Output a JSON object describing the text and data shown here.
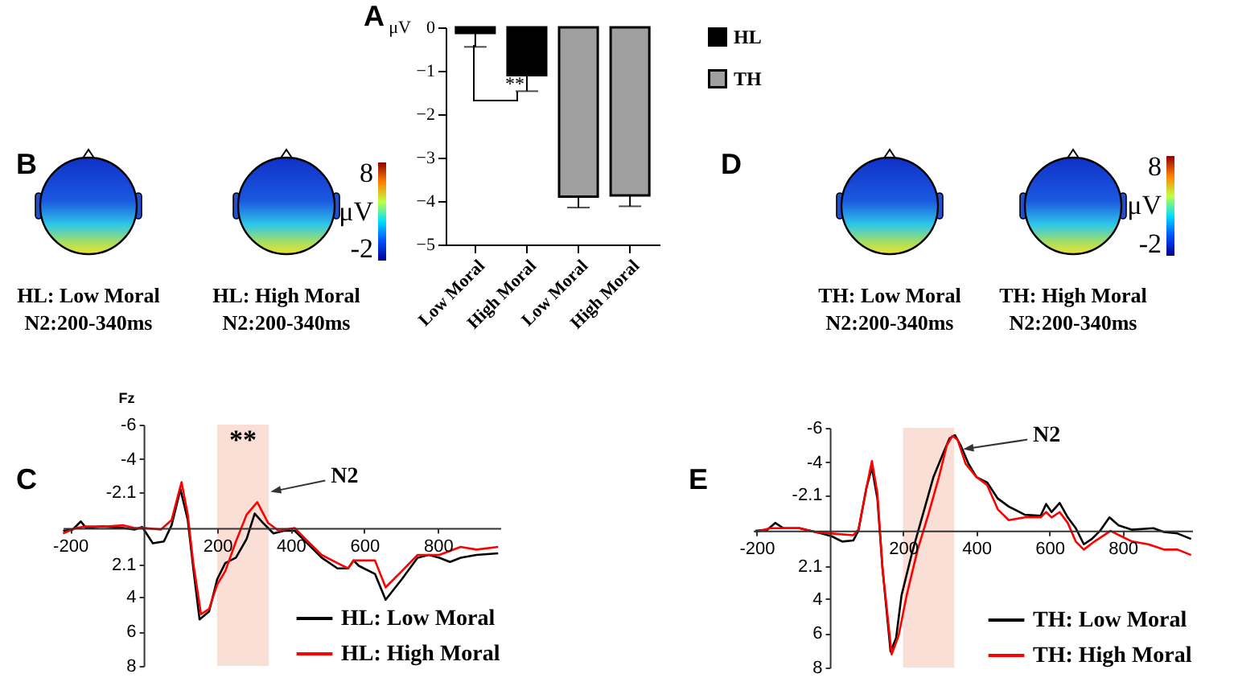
{
  "chart_data": [
    {
      "type": "bar",
      "title": "A",
      "ylabel": "μV",
      "categories": [
        "Low Moral",
        "High Moral",
        "Low Moral",
        "High Moral"
      ],
      "ylim": [
        -5,
        0
      ],
      "yticks": [
        0,
        -1,
        -2,
        -3,
        -4,
        -5
      ],
      "legend": "top right",
      "annotations": [
        "**"
      ],
      "series": [
        {
          "name": "HL",
          "color": "#000000",
          "values": [
            -0.13,
            -1.1,
            null,
            null
          ],
          "errors": [
            [
              -0.45,
              -0.13
            ],
            [
              -1.47,
              -1.1
            ],
            null,
            null
          ]
        },
        {
          "name": "TH",
          "color": "#a0a0a0",
          "values": [
            null,
            null,
            -3.9,
            -3.87
          ],
          "errors": [
            null,
            null,
            [
              -4.15,
              -3.9
            ],
            [
              -4.12,
              -3.87
            ]
          ]
        }
      ]
    },
    {
      "type": "other",
      "title": "B",
      "annotations": [
        "8",
        "μV",
        "-2",
        "HL: Low Moral",
        "N2:200-340ms",
        "HL: High Moral",
        "N2:200-340ms"
      ]
    },
    {
      "type": "other",
      "title": "D",
      "annotations": [
        "8",
        "μV",
        "-2",
        "TH: Low Moral",
        "N2:200-340ms",
        "TH: High Moral",
        "N2:200-340ms"
      ]
    },
    {
      "type": "line",
      "title": "C",
      "ylabel": "Fz",
      "xlim": [
        -220,
        970
      ],
      "ylim": [
        8,
        -6
      ],
      "xticks": [
        -200,
        200,
        400,
        600,
        800
      ],
      "yticks": [
        -6,
        -4,
        -2.1,
        2.1,
        4,
        6,
        8
      ],
      "legend": "bottom right",
      "bands": [
        {
          "axis": "x",
          "from": 200,
          "to": 340,
          "color": "#fadcd3"
        }
      ],
      "annotations": [
        "**",
        {
          "text": "N2",
          "x": 345,
          "y": -2.1
        }
      ],
      "series": [
        {
          "name": "HL: Low Moral",
          "color": "#000000",
          "x": [
            -219,
            -193,
            -171,
            -156,
            -113,
            -55,
            -25,
            -4,
            25,
            55,
            76,
            100,
            120,
            135,
            152,
            178,
            200,
            222,
            251,
            280,
            302,
            324,
            353,
            382,
            411,
            440,
            484,
            527,
            556,
            571,
            585,
            629,
            658,
            702,
            745,
            775,
            804,
            833,
            862,
            905,
            964
          ],
          "values": [
            0.16,
            0.09,
            -0.38,
            0,
            -0.09,
            0,
            0.09,
            -0.06,
            0.88,
            0.78,
            -0.16,
            -2.25,
            -0.47,
            2.34,
            5.3,
            4.84,
            2.97,
            2.03,
            1.72,
            0.63,
            -0.84,
            -0.31,
            0.31,
            0.16,
            0.16,
            0.78,
            1.72,
            2.34,
            2.34,
            1.88,
            2.19,
            2.66,
            4.16,
            2.97,
            1.72,
            1.56,
            1.72,
            1.97,
            1.72,
            1.56,
            1.47
          ]
        },
        {
          "name": "HL: High Moral",
          "color": "#ff0000",
          "x": [
            -219,
            -185,
            -156,
            -98,
            -55,
            -25,
            4,
            47,
            76,
            103,
            120,
            135,
            156,
            178,
            200,
            222,
            251,
            280,
            309,
            338,
            367,
            411,
            440,
            484,
            527,
            556,
            571,
            600,
            629,
            658,
            702,
            745,
            804,
            862,
            905,
            964
          ],
          "values": [
            0.31,
            0,
            -0.09,
            -0.09,
            -0.16,
            0,
            0,
            0.09,
            -0.47,
            -2.66,
            -0.78,
            2.03,
            5.0,
            4.69,
            3.28,
            2.5,
            0.78,
            -0.78,
            -1.5,
            -0.31,
            0.16,
            0,
            0.63,
            1.56,
            2.03,
            2.34,
            1.88,
            1.88,
            1.88,
            3.44,
            2.5,
            1.56,
            1.56,
            1.09,
            1.25,
            1.09
          ]
        }
      ]
    },
    {
      "type": "line",
      "title": "E",
      "xlim": [
        -210,
        990
      ],
      "ylim": [
        8,
        -6
      ],
      "xticks": [
        -200,
        200,
        400,
        600,
        800
      ],
      "yticks": [
        -6,
        -4,
        -2.1,
        2.1,
        4,
        6,
        8
      ],
      "legend": "bottom right",
      "bands": [
        {
          "axis": "x",
          "from": 200,
          "to": 340,
          "color": "#fadcd3"
        }
      ],
      "annotations": [
        {
          "text": "N2",
          "x": 364,
          "y": -4.75
        }
      ],
      "series": [
        {
          "name": "TH: Low Moral",
          "color": "#000000",
          "x": [
            -203,
            -171,
            -149,
            -127,
            -83,
            -39,
            5,
            34,
            64,
            78,
            100,
            115,
            130,
            144,
            166,
            181,
            196,
            225,
            254,
            283,
            313,
            327,
            342,
            357,
            379,
            401,
            430,
            459,
            489,
            533,
            576,
            591,
            606,
            628,
            650,
            672,
            694,
            716,
            738,
            764,
            789,
            826,
            884,
            913,
            950,
            987
          ],
          "values": [
            0.02,
            -0.05,
            -0.45,
            -0.14,
            -0.14,
            0.08,
            0.33,
            0.64,
            0.58,
            0.02,
            -2.49,
            -3.68,
            -1.87,
            2.21,
            7.07,
            6.29,
            3.78,
            1.27,
            -0.92,
            -3.12,
            -4.69,
            -5.38,
            -5.57,
            -5.0,
            -3.9,
            -3.12,
            -2.81,
            -1.87,
            -1.4,
            -0.92,
            -0.86,
            -1.55,
            -1.08,
            -1.61,
            -0.77,
            -0.14,
            0.8,
            0.49,
            0.02,
            -0.77,
            -0.3,
            -0.05,
            -0.14,
            0.08,
            0.17,
            0.49
          ]
        },
        {
          "name": "TH: High Moral",
          "color": "#ff0000",
          "x": [
            -203,
            -163,
            -127,
            -83,
            -39,
            5,
            64,
            78,
            100,
            115,
            130,
            144,
            169,
            188,
            210,
            240,
            269,
            298,
            320,
            335,
            349,
            371,
            401,
            430,
            459,
            489,
            533,
            576,
            591,
            606,
            628,
            650,
            672,
            694,
            723,
            767,
            796,
            826,
            870,
            913,
            950,
            987
          ],
          "values": [
            0.08,
            -0.14,
            -0.14,
            -0.14,
            0.08,
            0.17,
            0.27,
            -0.05,
            -2.49,
            -4.06,
            -2.18,
            2.21,
            7.23,
            6.13,
            3.78,
            1.11,
            -0.92,
            -3.12,
            -5.0,
            -5.53,
            -5.31,
            -3.9,
            -3.12,
            -2.65,
            -1.24,
            -0.61,
            -0.77,
            -0.77,
            -1.08,
            -0.77,
            -1.08,
            -0.45,
            0.64,
            1.11,
            0.64,
            0.02,
            0.33,
            0.64,
            0.8,
            1.11,
            1.11,
            1.43
          ]
        }
      ]
    }
  ]
}
